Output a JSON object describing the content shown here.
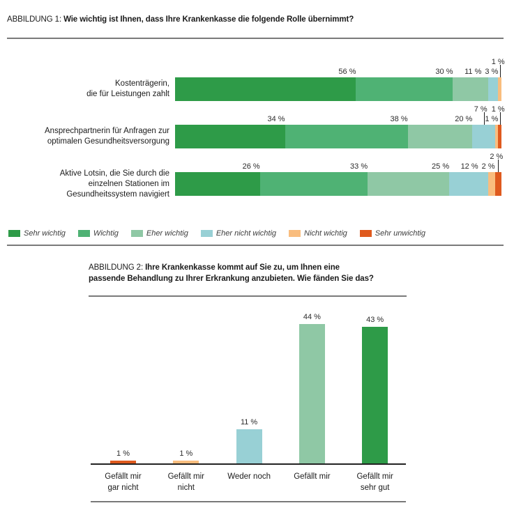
{
  "chart_data": [
    {
      "id": "abbildung-1",
      "type": "bar",
      "variant": "stacked-horizontal",
      "title_prefix": "ABBILDUNG 1:",
      "title": "Wie wichtig ist Ihnen, dass Ihre Krankenkasse die folgende Rolle übernimmt?",
      "unit": "%",
      "value_suffix": " %",
      "xlim": [
        0,
        100
      ],
      "grid": false,
      "legend_position": "bottom",
      "legend": [
        {
          "label": "Sehr wichtig",
          "color": "#2e9b48"
        },
        {
          "label": "Wichtig",
          "color": "#4fb274"
        },
        {
          "label": "Eher wichtig",
          "color": "#8fc8a5"
        },
        {
          "label": "Eher nicht wichtig",
          "color": "#98d0d5"
        },
        {
          "label": "Nicht wichtig",
          "color": "#f9bd7e"
        },
        {
          "label": "Sehr unwichtig",
          "color": "#df5a1e"
        }
      ],
      "categories": [
        [
          "Kostenträgerin,",
          "die für Leistungen zahlt"
        ],
        [
          "Ansprechpartnerin für Anfragen zur",
          "optimalen Gesundheitsversorgung"
        ],
        [
          "Aktive Lotsin, die Sie durch die",
          "einzelnen Stationen im",
          "Gesundheitssystem navigiert"
        ]
      ],
      "series": [
        {
          "name": "Sehr wichtig",
          "values": [
            56,
            34,
            26
          ]
        },
        {
          "name": "Wichtig",
          "values": [
            30,
            38,
            33
          ]
        },
        {
          "name": "Eher wichtig",
          "values": [
            11,
            20,
            25
          ]
        },
        {
          "name": "Eher nicht wichtig",
          "values": [
            3,
            7,
            12
          ]
        },
        {
          "name": "Nicht wichtig",
          "values": [
            1,
            1,
            2
          ]
        },
        {
          "name": "Sehr unwichtig",
          "values": [
            0,
            1,
            2
          ]
        }
      ]
    },
    {
      "id": "abbildung-2",
      "type": "bar",
      "variant": "vertical-columns",
      "title_prefix": "ABBILDUNG 2:",
      "title": "Ihre Krankenkasse kommt auf Sie zu, um Ihnen eine passende Behandlung zu Ihrer Erkrankung anzubieten. Wie fänden Sie das?",
      "title_lines": [
        "Ihre Krankenkasse kommt auf Sie zu, um Ihnen eine",
        "passende Behandlung zu Ihrer Erkrankung anzubieten. Wie fänden Sie das?"
      ],
      "unit": "%",
      "value_suffix": " %",
      "ylim": [
        0,
        50
      ],
      "grid": false,
      "categories": [
        [
          "Gefällt mir",
          "gar nicht"
        ],
        [
          "Gefällt mir",
          "nicht"
        ],
        [
          "Weder noch"
        ],
        [
          "Gefällt mir"
        ],
        [
          "Gefällt mir",
          "sehr gut"
        ]
      ],
      "values": [
        1,
        1,
        11,
        44,
        43
      ],
      "colors": [
        "#df5a1e",
        "#f9bd7e",
        "#98d0d5",
        "#8fc8a5",
        "#2e9b48"
      ]
    }
  ]
}
